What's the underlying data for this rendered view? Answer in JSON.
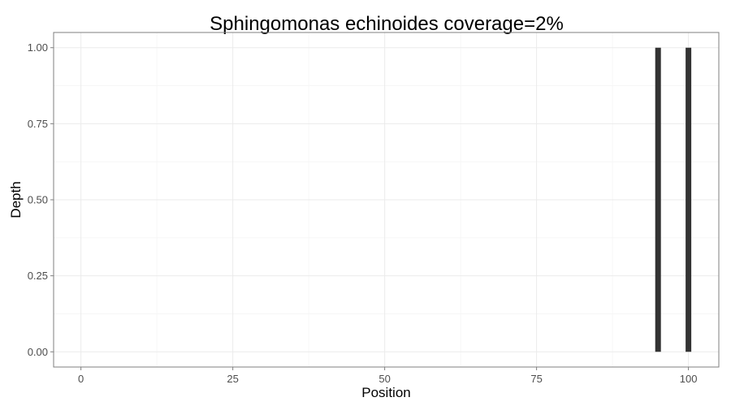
{
  "chart_data": {
    "type": "bar",
    "title": "Sphingomonas echinoides coverage=2%",
    "xlabel": "Position",
    "ylabel": "Depth",
    "xlim": [
      -4.5,
      105
    ],
    "ylim": [
      -0.05,
      1.05
    ],
    "x_ticks": [
      {
        "value": 0,
        "label": "0"
      },
      {
        "value": 25,
        "label": "25"
      },
      {
        "value": 50,
        "label": "50"
      },
      {
        "value": 75,
        "label": "75"
      },
      {
        "value": 100,
        "label": "100"
      }
    ],
    "y_ticks": [
      {
        "value": 0,
        "label": "0.00"
      },
      {
        "value": 0.25,
        "label": "0.25"
      },
      {
        "value": 0.5,
        "label": "0.50"
      },
      {
        "value": 0.75,
        "label": "0.75"
      },
      {
        "value": 1,
        "label": "1.00"
      }
    ],
    "points": [
      {
        "x": 95,
        "y": 1
      },
      {
        "x": 100,
        "y": 1
      }
    ],
    "grid": true,
    "legend": "none",
    "colors": {
      "bar": "#333333",
      "panel_border": "#7f7f7f",
      "grid_major": "#ebebeb",
      "grid_minor": "#f5f5f5",
      "tick_mark": "#7f7f7f"
    }
  }
}
